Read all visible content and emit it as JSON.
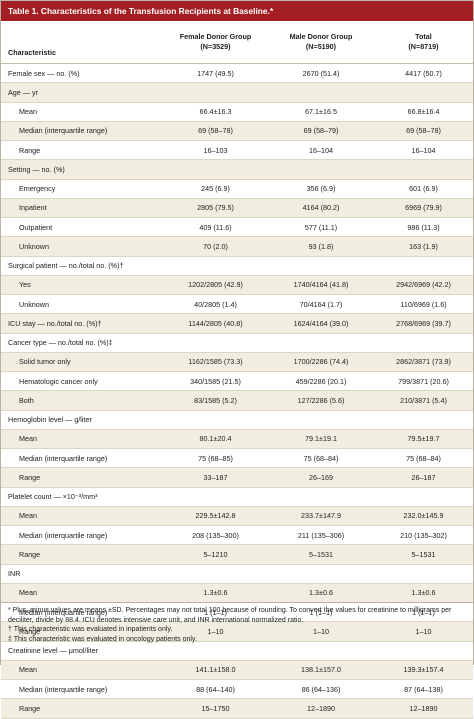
{
  "title": "Table 1. Characteristics of the Transfusion Recipients at Baseline.*",
  "header": {
    "characteristic": "Characteristic",
    "female": [
      "Female Donor Group",
      "(N=3529)"
    ],
    "male": [
      "Male Donor Group",
      "(N=5190)"
    ],
    "total": [
      "Total",
      "(N=8719)"
    ]
  },
  "rows": [
    {
      "label": "Female sex — no. (%)",
      "indent": false,
      "female": "1747 (49.5)",
      "male": "2670 (51.4)",
      "total": "4417 (50.7)"
    },
    {
      "label": "Age — yr",
      "indent": false,
      "female": "",
      "male": "",
      "total": ""
    },
    {
      "label": "Mean",
      "indent": true,
      "female": "66.4±16.3",
      "male": "67.1±16.5",
      "total": "66.8±16.4"
    },
    {
      "label": "Median (interquartile range)",
      "indent": true,
      "female": "69 (58–78)",
      "male": "69 (58–79)",
      "total": "69 (58–78)"
    },
    {
      "label": "Range",
      "indent": true,
      "female": "16–103",
      "male": "16–104",
      "total": "16–104"
    },
    {
      "label": "Setting — no. (%)",
      "indent": false,
      "female": "",
      "male": "",
      "total": ""
    },
    {
      "label": "Emergency",
      "indent": true,
      "female": "245 (6.9)",
      "male": "356 (6.9)",
      "total": "601 (6.9)"
    },
    {
      "label": "Inpatient",
      "indent": true,
      "female": "2805 (79.5)",
      "male": "4164 (80.2)",
      "total": "6969 (79.9)"
    },
    {
      "label": "Outpatient",
      "indent": true,
      "female": "409 (11.6)",
      "male": "577 (11.1)",
      "total": "986 (11.3)"
    },
    {
      "label": "Unknown",
      "indent": true,
      "female": "70 (2.0)",
      "male": "93 (1.8)",
      "total": "163 (1.9)"
    },
    {
      "label": "Surgical patient — no./total no. (%)†",
      "indent": false,
      "female": "",
      "male": "",
      "total": ""
    },
    {
      "label": "Yes",
      "indent": true,
      "female": "1202/2805 (42.9)",
      "male": "1740/4164 (41.8)",
      "total": "2942/6969 (42.2)"
    },
    {
      "label": "Unknown",
      "indent": true,
      "female": "40/2805 (1.4)",
      "male": "70/4164 (1.7)",
      "total": "110/6969 (1.6)"
    },
    {
      "label": "ICU stay — no./total no. (%)†",
      "indent": false,
      "female": "1144/2805 (40.8)",
      "male": "1624/4164 (39.0)",
      "total": "2768/6969 (39.7)"
    },
    {
      "label": "Cancer type — no./total no. (%)‡",
      "indent": false,
      "female": "",
      "male": "",
      "total": ""
    },
    {
      "label": "Solid tumor only",
      "indent": true,
      "female": "1162/1585 (73.3)",
      "male": "1700/2286 (74.4)",
      "total": "2862/3871 (73.9)"
    },
    {
      "label": "Hematologic cancer only",
      "indent": true,
      "female": "340/1585 (21.5)",
      "male": "459/2286 (20.1)",
      "total": "799/3871 (20.6)"
    },
    {
      "label": "Both",
      "indent": true,
      "female": "83/1585 (5.2)",
      "male": "127/2286 (5.6)",
      "total": "210/3871 (5.4)"
    },
    {
      "label": "Hemoglobin level — g/liter",
      "indent": false,
      "female": "",
      "male": "",
      "total": ""
    },
    {
      "label": "Mean",
      "indent": true,
      "female": "80.1±20.4",
      "male": "79.1±19.1",
      "total": "79.5±19.7"
    },
    {
      "label": "Median (interquartile range)",
      "indent": true,
      "female": "75 (68–85)",
      "male": "75 (68–84)",
      "total": "75 (68–84)"
    },
    {
      "label": "Range",
      "indent": true,
      "female": "33–187",
      "male": "26–169",
      "total": "26–187"
    },
    {
      "label": "Platelet count — ×10⁻³/mm³",
      "indent": false,
      "female": "",
      "male": "",
      "total": ""
    },
    {
      "label": "Mean",
      "indent": true,
      "female": "229.5±142.8",
      "male": "233.7±147.9",
      "total": "232.0±145.9"
    },
    {
      "label": "Median (interquartile range)",
      "indent": true,
      "female": "208 (135–300)",
      "male": "211 (135–306)",
      "total": "210 (135–302)"
    },
    {
      "label": "Range",
      "indent": true,
      "female": "5–1210",
      "male": "5–1531",
      "total": "5–1531"
    },
    {
      "label": "INR",
      "indent": false,
      "female": "",
      "male": "",
      "total": ""
    },
    {
      "label": "Mean",
      "indent": true,
      "female": "1.3±0.6",
      "male": "1.3±0.6",
      "total": "1.3±0.6"
    },
    {
      "label": "Median (interquartile range)",
      "indent": true,
      "female": "1 (1–1)",
      "male": "1 (1–1)",
      "total": "1 (1–1)"
    },
    {
      "label": "Range",
      "indent": true,
      "female": "1–10",
      "male": "1–10",
      "total": "1–10"
    },
    {
      "label": "Creatinine level — μmol/liter",
      "indent": false,
      "female": "",
      "male": "",
      "total": ""
    },
    {
      "label": "Mean",
      "indent": true,
      "female": "141.1±158.0",
      "male": "138.1±157.0",
      "total": "139.3±157.4"
    },
    {
      "label": "Median (interquartile range)",
      "indent": true,
      "female": "88 (64–140)",
      "male": "86 (64–136)",
      "total": "87 (64–138)"
    },
    {
      "label": "Range",
      "indent": true,
      "female": "15–1750",
      "male": "12–1890",
      "total": "12–1890"
    }
  ],
  "footnotes": [
    "* Plus–minus values are means ±SD. Percentages may not total 100 because of rounding. To convert the values for creatinine to milligrams per deciliter, divide by 88.4. ICU denotes intensive care unit, and INR international normalized ratio.",
    "† This characteristic was evaluated in inpatients only.",
    "‡ This characteristic was evaluated in oncology patients only."
  ],
  "colors": {
    "title_bar": "#a31f23",
    "row_shade": "#f2ede1"
  }
}
